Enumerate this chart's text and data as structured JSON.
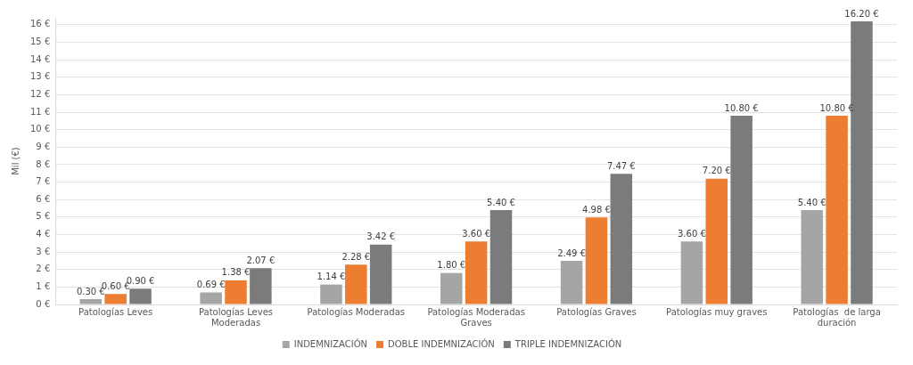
{
  "chart_data": {
    "type": "bar",
    "ylabel": "Mil (€)",
    "categories": [
      "Patologías Leves",
      "Patologías Leves Moderadas",
      "Patologías Moderadas",
      "Patologías Moderadas Graves",
      "Patologías Graves",
      "Patologías muy graves",
      "Patologías  de larga duración"
    ],
    "series": [
      {
        "name": "INDEMNIZACIÓN",
        "color": "#a5a5a5",
        "values": [
          0.3,
          0.69,
          1.14,
          1.8,
          2.49,
          3.6,
          5.4
        ],
        "value_labels": [
          "0.30 €",
          "0.69 €",
          "1.14 €",
          "1.80 €",
          "2.49 €",
          "3.60 €",
          "5.40 €"
        ]
      },
      {
        "name": "DOBLE INDEMNIZACIÓN",
        "color": "#ed7d31",
        "values": [
          0.6,
          1.38,
          2.28,
          3.6,
          4.98,
          7.2,
          10.8
        ],
        "value_labels": [
          "0.60 €",
          "1.38 €",
          "2.28 €",
          "3.60 €",
          "4.98 €",
          "7.20 €",
          "10.80 €"
        ]
      },
      {
        "name": "TRIPLE INDEMNIZACIÓN",
        "color": "#7b7b7b",
        "values": [
          0.9,
          2.07,
          3.42,
          5.4,
          7.47,
          10.8,
          16.2
        ],
        "value_labels": [
          "0.90 €",
          "2.07 €",
          "3.42 €",
          "5.40 €",
          "7.47 €",
          "10.80 €",
          "16.20 €"
        ]
      }
    ],
    "ylim": [
      0,
      16.4
    ],
    "yticks": [
      {
        "value": 0,
        "label": "0 €"
      },
      {
        "value": 1,
        "label": "1 €"
      },
      {
        "value": 2,
        "label": "2 €"
      },
      {
        "value": 3,
        "label": "3 €"
      },
      {
        "value": 4,
        "label": "4 €"
      },
      {
        "value": 5,
        "label": "5 €"
      },
      {
        "value": 6,
        "label": "6 €"
      },
      {
        "value": 7,
        "label": "7 €"
      },
      {
        "value": 8,
        "label": "8 €"
      },
      {
        "value": 9,
        "label": "9 €"
      },
      {
        "value": 10,
        "label": "10 €"
      },
      {
        "value": 11,
        "label": "11 €"
      },
      {
        "value": 12,
        "label": "12 €"
      },
      {
        "value": 13,
        "label": "13 €"
      },
      {
        "value": 14,
        "label": "14 €"
      },
      {
        "value": 15,
        "label": "15 €"
      },
      {
        "value": 16,
        "label": "16 €"
      }
    ],
    "grid": "y",
    "legend": "bottom"
  }
}
